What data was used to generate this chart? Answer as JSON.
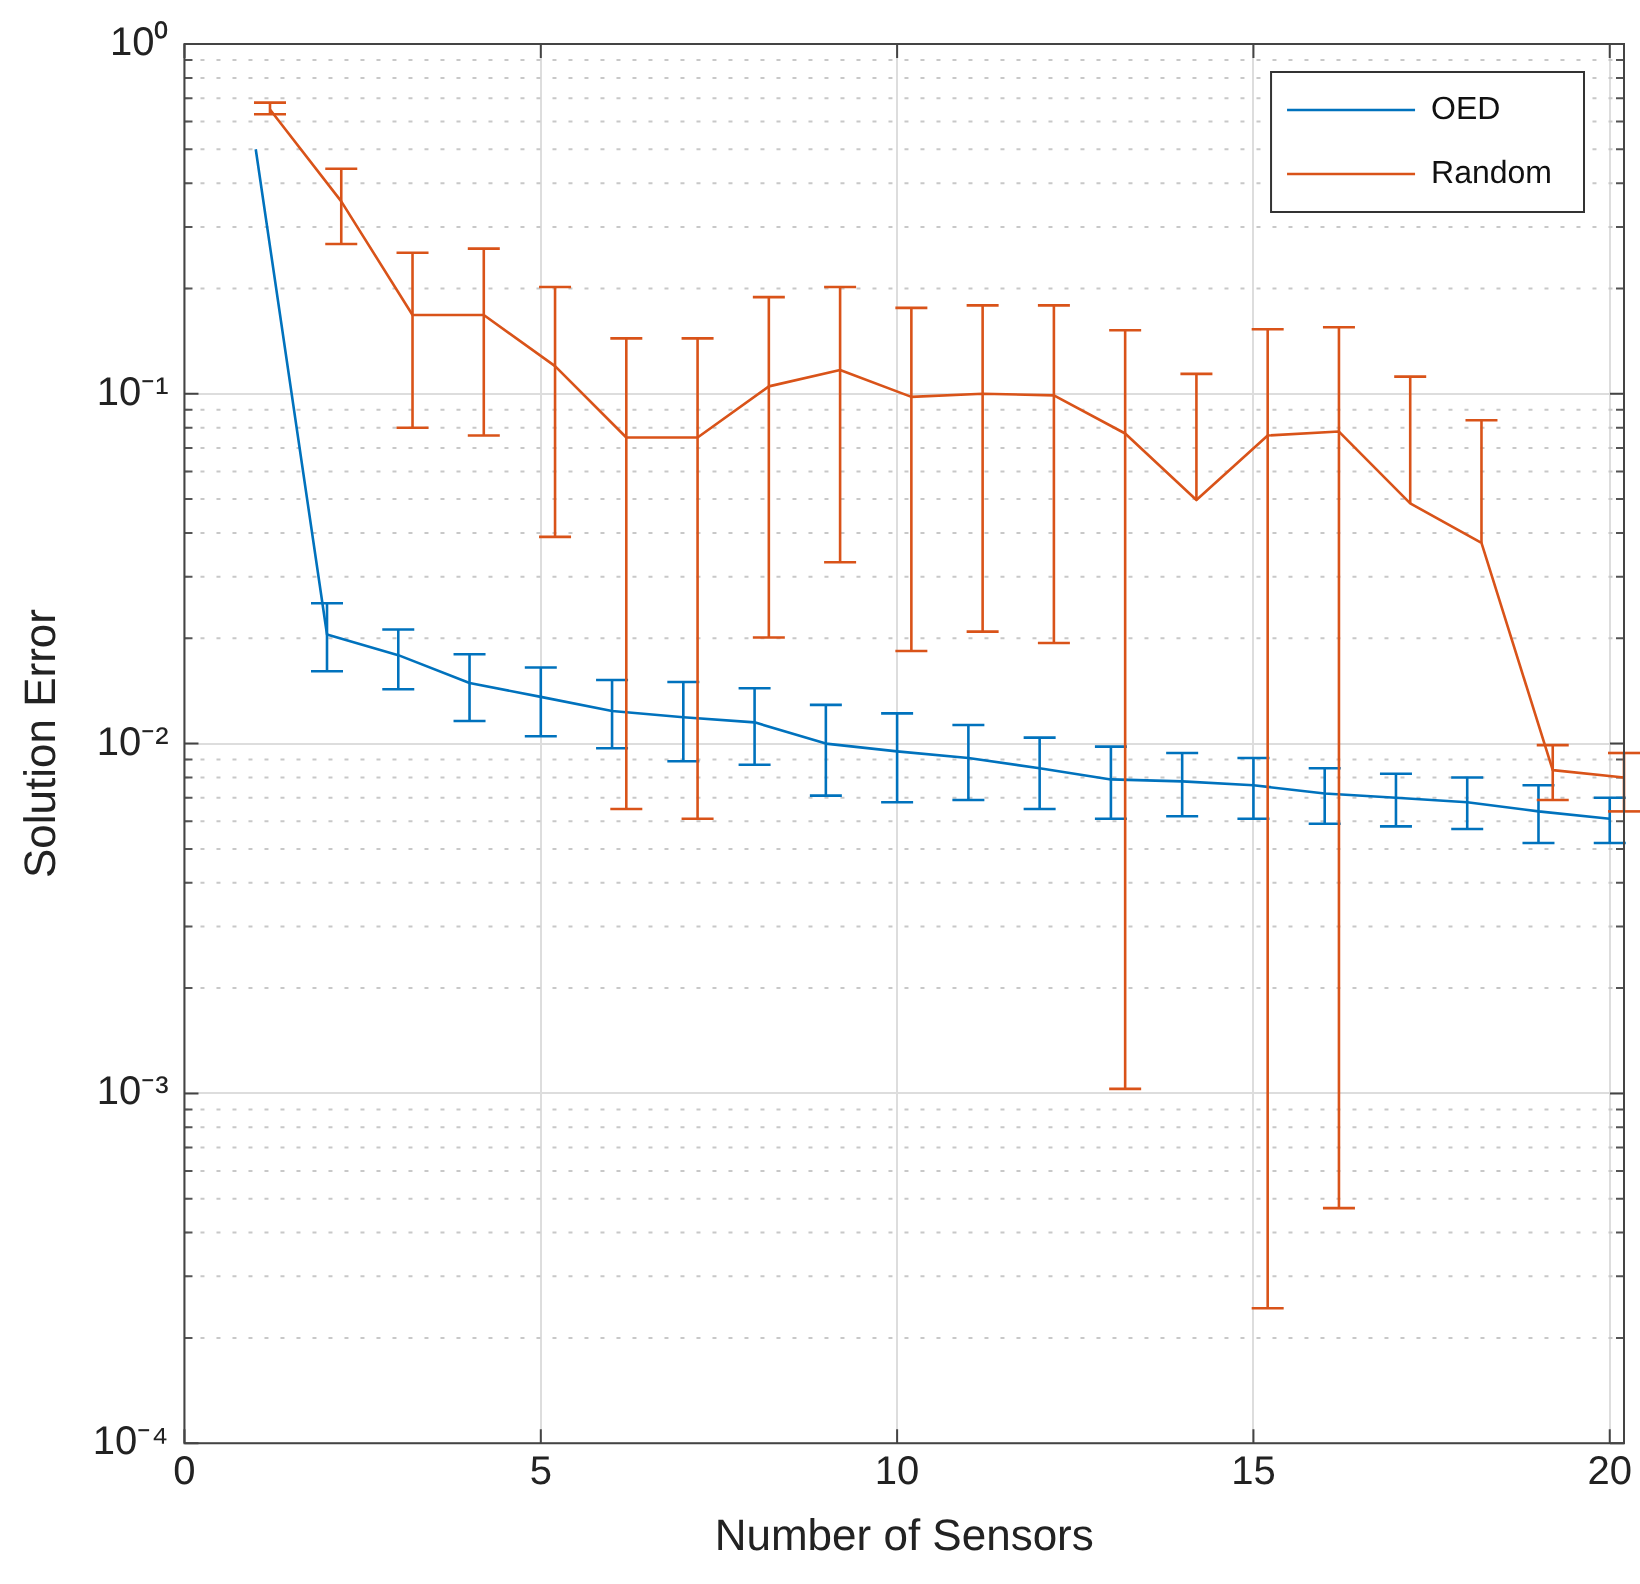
{
  "chart_data": {
    "type": "line",
    "xlabel": "Number of Sensors",
    "ylabel": "Solution Error",
    "xlim": [
      0,
      20.2
    ],
    "xticks": [
      0,
      5,
      10,
      15,
      20
    ],
    "ylim": [
      0.0001,
      1
    ],
    "yticks": [
      {
        "value": 0.0001,
        "label": "10⁻⁴"
      },
      {
        "value": 0.001,
        "label": "10⁻³"
      },
      {
        "value": 0.01,
        "label": "10⁻²"
      },
      {
        "value": 0.1,
        "label": "10⁻¹"
      },
      {
        "value": 1,
        "label": "10⁰"
      }
    ],
    "log": "y",
    "grid": true,
    "legend": "top right",
    "marker": "none",
    "line_style": "solid",
    "series": [
      {
        "name": "OED",
        "color": "#0072bd",
        "x": [
          1,
          2,
          3,
          4,
          5,
          6,
          7,
          8,
          9,
          10,
          11,
          12,
          13,
          14,
          15,
          16,
          17,
          18,
          19,
          20
        ],
        "values": [
          0.5,
          0.0205,
          0.0179,
          0.0149,
          0.0136,
          0.0124,
          0.0119,
          0.0115,
          0.01,
          0.0095,
          0.0091,
          0.0085,
          0.0079,
          0.0078,
          0.0076,
          0.0072,
          0.007,
          0.0068,
          0.0064,
          0.0061
        ],
        "errors": [
          null,
          [
            0.0161,
            0.0252
          ],
          [
            0.0143,
            0.0212
          ],
          [
            0.0116,
            0.018
          ],
          [
            0.0105,
            0.0165
          ],
          [
            0.0097,
            0.0152
          ],
          [
            0.0089,
            0.015
          ],
          [
            0.0087,
            0.0144
          ],
          [
            0.0071,
            0.0129
          ],
          [
            0.0068,
            0.0122
          ],
          [
            0.0069,
            0.0113
          ],
          [
            0.0065,
            0.0104
          ],
          [
            0.0061,
            0.0098
          ],
          [
            0.0062,
            0.0094
          ],
          [
            0.0061,
            0.0091
          ],
          [
            0.0059,
            0.0085
          ],
          [
            0.0058,
            0.0082
          ],
          [
            0.0057,
            0.008
          ],
          [
            0.0052,
            0.0076
          ],
          [
            0.0052,
            0.007
          ]
        ]
      },
      {
        "name": "Random",
        "color": "#d95319",
        "x": [
          1.2,
          2.2,
          3.2,
          4.2,
          5.2,
          6.2,
          7.2,
          8.2,
          9.2,
          10.2,
          11.2,
          12.2,
          13.2,
          14.2,
          15.2,
          16.2,
          17.2,
          18.2,
          19.2,
          20.2
        ],
        "values": [
          0.65,
          0.355,
          0.168,
          0.168,
          0.12,
          0.075,
          0.075,
          0.105,
          0.117,
          0.098,
          0.1,
          0.099,
          0.077,
          0.0497,
          0.076,
          0.078,
          0.0486,
          0.0375,
          0.0084,
          0.008
        ],
        "errors": [
          [
            0.63,
            0.68
          ],
          [
            0.268,
            0.44
          ],
          [
            0.08,
            0.253
          ],
          [
            0.076,
            0.26
          ],
          [
            0.039,
            0.202
          ],
          [
            0.0065,
            0.144
          ],
          [
            0.0061,
            0.144
          ],
          [
            0.0201,
            0.189
          ],
          [
            0.033,
            0.202
          ],
          [
            0.0184,
            0.176
          ],
          [
            0.0209,
            0.179
          ],
          [
            0.0194,
            0.179
          ],
          [
            0.00103,
            0.152
          ],
          [
            0.0497,
            0.114
          ],
          [
            0.000243,
            0.153
          ],
          [
            0.00047,
            0.155
          ],
          [
            0.0486,
            0.112
          ],
          [
            0.0375,
            0.084
          ],
          [
            0.0069,
            0.0099
          ],
          [
            0.0064,
            0.0094
          ]
        ]
      }
    ]
  }
}
